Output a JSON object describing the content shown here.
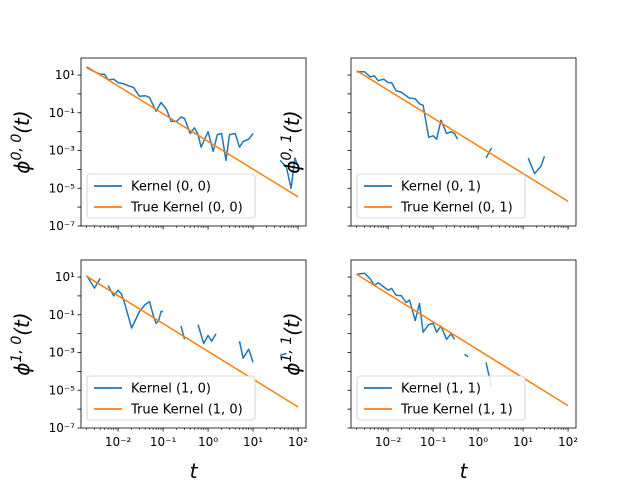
{
  "chart_data": {
    "type": "line",
    "xscale": "log",
    "yscale": "log",
    "xlim": [
      0.0015,
      150
    ],
    "ylim": [
      1e-07,
      80
    ],
    "xticks": [
      {
        "value": 0.01,
        "label": "10⁻²"
      },
      {
        "value": 0.1,
        "label": "10⁻¹"
      },
      {
        "value": 1,
        "label": "10⁰"
      },
      {
        "value": 10,
        "label": "10¹"
      },
      {
        "value": 100,
        "label": "10²"
      }
    ],
    "yticks": [
      {
        "value": 10,
        "label": "10¹"
      },
      {
        "value": 0.1,
        "label": "10⁻¹"
      },
      {
        "value": 0.001,
        "label": "10⁻³"
      },
      {
        "value": 1e-05,
        "label": "10⁻⁵"
      },
      {
        "value": 1e-07,
        "label": "10⁻⁷"
      }
    ],
    "xlabel": "t",
    "colors": {
      "estimated": "#1f77b4",
      "true": "#ff7f0e"
    },
    "legend_position": "lower-left",
    "panels": [
      {
        "id": "00",
        "ylabel_base": "ϕ",
        "ylabel_sup": "0, 0",
        "ylabel_arg": "(t)",
        "series": [
          {
            "name": "Kernel (0, 0)",
            "segments": [
              [
                [
                  0.002,
                  25
                ],
                [
                  0.003,
                  15
                ],
                [
                  0.004,
                  11
                ],
                [
                  0.005,
                  11
                ],
                [
                  0.006,
                  5.5
                ],
                [
                  0.008,
                  6
                ],
                [
                  0.01,
                  4
                ],
                [
                  0.013,
                  3.5
                ],
                [
                  0.017,
                  2.7
                ],
                [
                  0.022,
                  2.2
                ],
                [
                  0.03,
                  0.75
                ],
                [
                  0.04,
                  0.8
                ],
                [
                  0.05,
                  0.65
                ],
                [
                  0.07,
                  0.12
                ],
                [
                  0.09,
                  0.35
                ],
                [
                  0.12,
                  0.15
                ],
                [
                  0.15,
                  0.035
                ],
                [
                  0.2,
                  0.035
                ],
                [
                  0.25,
                  0.06
                ],
                [
                  0.3,
                  0.05
                ],
                [
                  0.4,
                  0.008
                ],
                [
                  0.5,
                  0.016
                ],
                [
                  0.6,
                  0.007
                ],
                [
                  0.7,
                  0.0015
                ],
                [
                  1.0,
                  0.01
                ],
                [
                  1.3,
                  0.0009
                ],
                [
                  1.6,
                  0.007
                ],
                [
                  2.0,
                  0.008
                ],
                [
                  2.5,
                  0.0003
                ],
                [
                  3.0,
                  0.007
                ],
                [
                  4.0,
                  0.008
                ],
                [
                  5.0,
                  0.0015
                ],
                [
                  6.0,
                  0.003
                ],
                [
                  8.0,
                  0.004
                ],
                [
                  10.0,
                  0.008
                ]
              ],
              [
                [
                  40,
                  0.0003
                ],
                [
                  55,
                  0.00013
                ],
                [
                  70,
                  1e-05
                ],
                [
                  85,
                  0.0004
                ],
                [
                  100,
                  0.00015
                ]
              ]
            ]
          },
          {
            "name": "True Kernel (0, 0)",
            "segments": [
              [
                [
                  0.002,
                  28
                ],
                [
                  100,
                  3.5e-06
                ]
              ]
            ]
          }
        ]
      },
      {
        "id": "01",
        "ylabel_base": "ϕ",
        "ylabel_sup": "0, 1",
        "ylabel_arg": "(t)",
        "series": [
          {
            "name": "Kernel (0, 1)",
            "segments": [
              [
                [
                  0.002,
                  15
                ],
                [
                  0.003,
                  15
                ],
                [
                  0.004,
                  8
                ],
                [
                  0.005,
                  9
                ],
                [
                  0.006,
                  5
                ],
                [
                  0.008,
                  6
                ],
                [
                  0.01,
                  4
                ],
                [
                  0.012,
                  4
                ],
                [
                  0.015,
                  1.5
                ],
                [
                  0.02,
                  1.2
                ],
                [
                  0.025,
                  0.8
                ],
                [
                  0.03,
                  0.6
                ],
                [
                  0.04,
                  0.55
                ],
                [
                  0.05,
                  0.3
                ],
                [
                  0.06,
                  0.25
                ],
                [
                  0.08,
                  0.005
                ],
                [
                  0.1,
                  0.006
                ],
                [
                  0.12,
                  0.004
                ],
                [
                  0.15,
                  0.04
                ],
                [
                  0.2,
                  0.008
                ],
                [
                  0.25,
                  0.01
                ],
                [
                  0.3,
                  0.008
                ],
                [
                  0.35,
                  0.004
                ]
              ],
              [
                [
                  1.5,
                  0.0004
                ],
                [
                  2.0,
                  0.0014
                ]
              ],
              [
                [
                  13,
                  0.0004
                ],
                [
                  18,
                  6e-05
                ],
                [
                  25,
                  0.00015
                ],
                [
                  30,
                  0.0005
                ]
              ]
            ]
          },
          {
            "name": "True Kernel (0, 1)",
            "segments": [
              [
                [
                  0.002,
                  17
                ],
                [
                  100,
                  2e-06
                ]
              ]
            ]
          }
        ]
      },
      {
        "id": "10",
        "ylabel_base": "ϕ",
        "ylabel_sup": "1, 0",
        "ylabel_arg": "(t)",
        "series": [
          {
            "name": "Kernel (1, 0)",
            "segments": [
              [
                [
                  0.002,
                  12
                ],
                [
                  0.003,
                  2.6
                ],
                [
                  0.004,
                  8.5
                ]
              ],
              [
                [
                  0.006,
                  3.5
                ],
                [
                  0.008,
                  1.0
                ],
                [
                  0.01,
                  2
                ],
                [
                  0.012,
                  1.2
                ],
                [
                  0.014,
                  0.4
                ],
                [
                  0.02,
                  0.02
                ],
                [
                  0.03,
                  0.15
                ],
                [
                  0.04,
                  0.35
                ],
                [
                  0.05,
                  0.5
                ],
                [
                  0.06,
                  0.1
                ],
                [
                  0.07,
                  0.035
                ],
                [
                  0.08,
                  0.05
                ],
                [
                  0.09,
                  0.15
                ],
                [
                  0.1,
                  0.15
                ]
              ],
              [
                [
                  0.25,
                  0.025
                ],
                [
                  0.3,
                  0.005
                ]
              ],
              [
                [
                  0.6,
                  0.03
                ],
                [
                  0.8,
                  0.003
                ],
                [
                  1.0,
                  0.008
                ],
                [
                  1.2,
                  0.004
                ],
                [
                  1.5,
                  0.01
                ]
              ],
              [
                [
                  5.0,
                  0.004
                ],
                [
                  6.0,
                  0.0005
                ],
                [
                  8.0,
                  0.0015
                ],
                [
                  10.0,
                  0.0003
                ]
              ],
              [
                [
                  40,
                  0.0007
                ],
                [
                  55,
                  0.0009
                ]
              ]
            ]
          },
          {
            "name": "True Kernel (1, 0)",
            "segments": [
              [
                [
                  0.002,
                  11
                ],
                [
                  100,
                  1.3e-06
                ]
              ]
            ]
          }
        ]
      },
      {
        "id": "11",
        "ylabel_base": "ϕ",
        "ylabel_sup": "1, 1",
        "ylabel_arg": "(t)",
        "series": [
          {
            "name": "Kernel (1, 1)",
            "segments": [
              [
                [
                  0.002,
                  14
                ],
                [
                  0.003,
                  16
                ],
                [
                  0.004,
                  8
                ],
                [
                  0.005,
                  3.5
                ],
                [
                  0.006,
                  5
                ],
                [
                  0.008,
                  3
                ],
                [
                  0.01,
                  2
                ],
                [
                  0.012,
                  2.5
                ],
                [
                  0.015,
                  1.1
                ],
                [
                  0.02,
                  1.0
                ],
                [
                  0.025,
                  0.45
                ],
                [
                  0.03,
                  0.6
                ],
                [
                  0.04,
                  0.05
                ],
                [
                  0.05,
                  0.4
                ],
                [
                  0.06,
                  0.012
                ],
                [
                  0.08,
                  0.03
                ],
                [
                  0.1,
                  0.035
                ],
                [
                  0.12,
                  0.012
                ],
                [
                  0.15,
                  0.025
                ],
                [
                  0.2,
                  0.005
                ],
                [
                  0.25,
                  0.01
                ],
                [
                  0.3,
                  0.005
                ]
              ],
              [
                [
                  0.5,
                  0.0008
                ],
                [
                  0.6,
                  0.0006
                ]
              ],
              [
                [
                  1.5,
                  0.0003
                ],
                [
                  2.0,
                  1.5e-05
                ]
              ]
            ]
          },
          {
            "name": "True Kernel (1, 1)",
            "segments": [
              [
                [
                  0.002,
                  14
                ],
                [
                  100,
                  1.5e-06
                ]
              ]
            ]
          }
        ]
      }
    ]
  }
}
